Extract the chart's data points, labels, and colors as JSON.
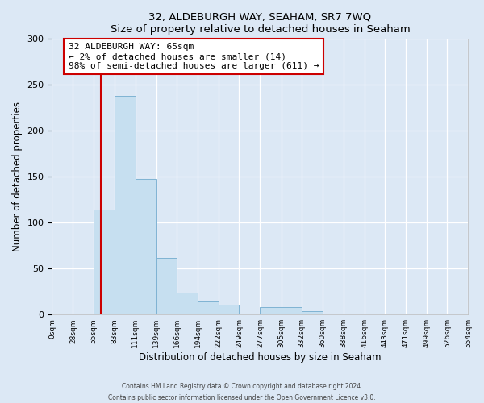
{
  "title": "32, ALDEBURGH WAY, SEAHAM, SR7 7WQ",
  "subtitle": "Size of property relative to detached houses in Seaham",
  "xlabel": "Distribution of detached houses by size in Seaham",
  "ylabel": "Number of detached properties",
  "bar_edges": [
    0,
    28,
    55,
    83,
    111,
    139,
    166,
    194,
    222,
    249,
    277,
    305,
    332,
    360,
    388,
    416,
    443,
    471,
    499,
    526,
    554
  ],
  "bar_heights": [
    0,
    0,
    114,
    238,
    148,
    62,
    24,
    14,
    11,
    0,
    8,
    8,
    4,
    0,
    0,
    1,
    0,
    0,
    0,
    1
  ],
  "tick_labels": [
    "0sqm",
    "28sqm",
    "55sqm",
    "83sqm",
    "111sqm",
    "139sqm",
    "166sqm",
    "194sqm",
    "222sqm",
    "249sqm",
    "277sqm",
    "305sqm",
    "332sqm",
    "360sqm",
    "388sqm",
    "416sqm",
    "443sqm",
    "471sqm",
    "499sqm",
    "526sqm",
    "554sqm"
  ],
  "bar_color": "#c6dff0",
  "bar_edge_color": "#7fb3d3",
  "vline_x": 65,
  "vline_color": "#cc0000",
  "ylim": [
    0,
    300
  ],
  "yticks": [
    0,
    50,
    100,
    150,
    200,
    250,
    300
  ],
  "annotation_title": "32 ALDEBURGH WAY: 65sqm",
  "annotation_line1": "← 2% of detached houses are smaller (14)",
  "annotation_line2": "98% of semi-detached houses are larger (611) →",
  "annotation_box_color": "#ffffff",
  "annotation_box_edge": "#cc0000",
  "footer_line1": "Contains HM Land Registry data © Crown copyright and database right 2024.",
  "footer_line2": "Contains public sector information licensed under the Open Government Licence v3.0.",
  "background_color": "#dce8f5",
  "plot_bg_color": "#dce8f5"
}
